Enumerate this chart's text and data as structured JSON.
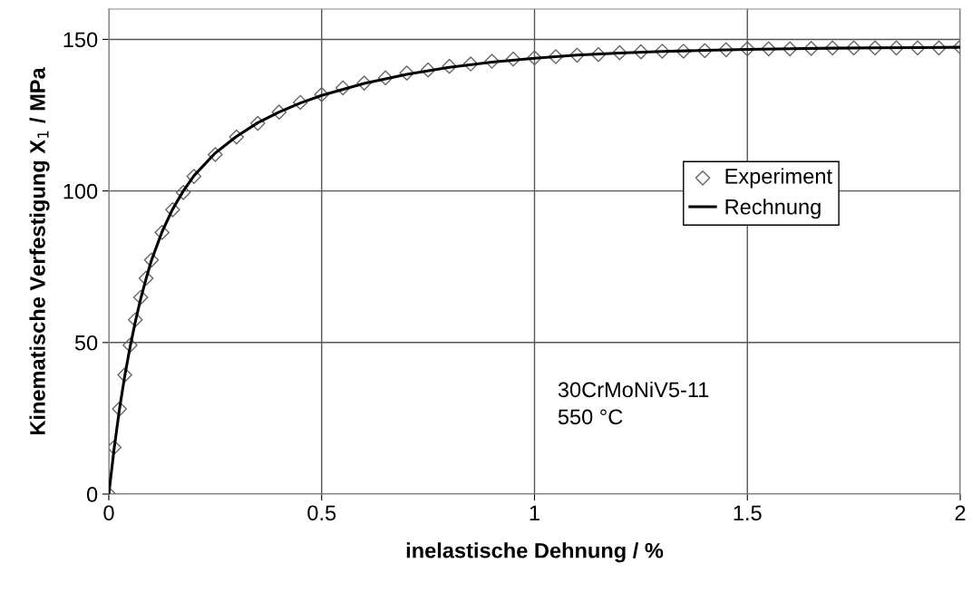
{
  "chart_data": {
    "type": "scatter",
    "xlabel": "inelastische Dehnung / %",
    "ylabel": "Kinematische Verfestigung X$_{1}$ / MPa",
    "xlim": [
      0,
      2
    ],
    "xticks": [
      0,
      0.5,
      1,
      1.5,
      2
    ],
    "ylim": [
      0,
      160
    ],
    "yticks": [
      0,
      50,
      100,
      150
    ],
    "grid": true,
    "legend": "right",
    "annotations": [
      "30CrMoNiV5-11",
      "550 °C"
    ],
    "series": [
      {
        "name": "Experiment",
        "marker": "diamond",
        "color": "#666666",
        "x": [
          0,
          0.0125,
          0.025,
          0.0375,
          0.05,
          0.0625,
          0.075,
          0.0875,
          0.1,
          0.125,
          0.15,
          0.175,
          0.2,
          0.25,
          0.3,
          0.35,
          0.4,
          0.45,
          0.5,
          0.55,
          0.6,
          0.65,
          0.7,
          0.75,
          0.8,
          0.85,
          0.9,
          0.95,
          1.0,
          1.05,
          1.1,
          1.15,
          1.2,
          1.25,
          1.3,
          1.35,
          1.4,
          1.45,
          1.5,
          1.55,
          1.6,
          1.65,
          1.7,
          1.75,
          1.8,
          1.85,
          1.9,
          1.95,
          2.0
        ],
        "values": [
          0,
          15.4,
          28.1,
          39.3,
          49.1,
          57.5,
          64.9,
          71.2,
          77.2,
          86.3,
          93.8,
          99.5,
          104.8,
          112,
          117.8,
          122.3,
          126,
          129.2,
          131.8,
          134,
          135.6,
          137.3,
          138.9,
          139.9,
          141.1,
          141.9,
          142.8,
          143.5,
          143.9,
          144.3,
          144.8,
          145,
          145.6,
          145.9,
          146.1,
          146.1,
          146.3,
          146.6,
          146.9,
          146.9,
          146.9,
          147,
          147.2,
          147.2,
          147.2,
          147.2,
          147.2,
          147.2,
          147.5
        ]
      },
      {
        "name": "Rechnung",
        "type": "line",
        "line_style": "solid",
        "color": "#000000",
        "x": [
          0,
          0.0125,
          0.025,
          0.0375,
          0.05,
          0.0625,
          0.075,
          0.0875,
          0.1,
          0.125,
          0.15,
          0.175,
          0.2,
          0.25,
          0.3,
          0.35,
          0.4,
          0.45,
          0.5,
          0.6,
          0.7,
          0.8,
          0.9,
          1.0,
          1.1,
          1.2,
          1.3,
          1.4,
          1.5,
          1.6,
          1.7,
          1.8,
          1.9,
          2.0
        ],
        "values": [
          0,
          15,
          28,
          39,
          48.5,
          57,
          64.5,
          71,
          77,
          86.5,
          94,
          100,
          105,
          112.5,
          118,
          122.5,
          126,
          129,
          131.5,
          135.5,
          138.5,
          140.8,
          142.5,
          143.8,
          144.8,
          145.5,
          146,
          146.4,
          146.7,
          146.9,
          147.1,
          147.2,
          147.3,
          147.4
        ]
      }
    ]
  }
}
